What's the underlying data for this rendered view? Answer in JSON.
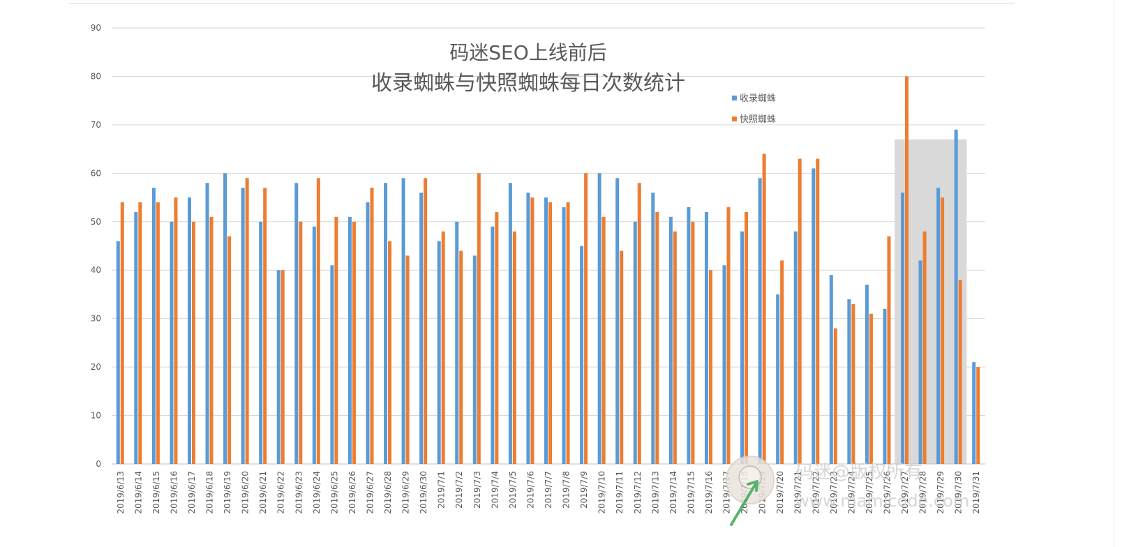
{
  "chart_data": {
    "type": "bar",
    "title_lines": [
      "码迷SEO上线前后",
      "收录蜘蛛与快照蜘蛛每日次数统计"
    ],
    "xlabel": "",
    "ylabel": "",
    "ylim": [
      0,
      90
    ],
    "yticks": [
      0,
      10,
      20,
      30,
      40,
      50,
      60,
      70,
      80,
      90
    ],
    "grid": true,
    "legend_position": "top-right",
    "categories": [
      "2019/6/13",
      "2019/6/14",
      "2019/6/15",
      "2019/6/16",
      "2019/6/17",
      "2019/6/18",
      "2019/6/19",
      "2019/6/20",
      "2019/6/21",
      "2019/6/22",
      "2019/6/23",
      "2019/6/24",
      "2019/6/25",
      "2019/6/26",
      "2019/6/27",
      "2019/6/28",
      "2019/6/29",
      "2019/6/30",
      "2019/7/1",
      "2019/7/2",
      "2019/7/3",
      "2019/7/4",
      "2019/7/5",
      "2019/7/6",
      "2019/7/7",
      "2019/7/8",
      "2019/7/9",
      "2019/7/10",
      "2019/7/11",
      "2019/7/12",
      "2019/7/13",
      "2019/7/14",
      "2019/7/15",
      "2019/7/16",
      "2019/7/17",
      "2019/7/18",
      "2019/7/19",
      "2019/7/20",
      "2019/7/21",
      "2019/7/22",
      "2019/7/23",
      "2019/7/24",
      "2019/7/25",
      "2019/7/26",
      "2019/7/27",
      "2019/7/28",
      "2019/7/29",
      "2019/7/30",
      "2019/7/31"
    ],
    "series": [
      {
        "name": "收录蜘蛛",
        "color": "#5b9bd5",
        "values": [
          46,
          52,
          57,
          50,
          55,
          58,
          60,
          57,
          50,
          40,
          58,
          49,
          41,
          51,
          54,
          58,
          59,
          56,
          46,
          50,
          43,
          49,
          58,
          56,
          55,
          53,
          45,
          60,
          59,
          50,
          56,
          51,
          53,
          52,
          41,
          48,
          59,
          35,
          48,
          61,
          39,
          34,
          37,
          32,
          56,
          42,
          57,
          69,
          21
        ]
      },
      {
        "name": "快照蜘蛛",
        "color": "#ed7d31",
        "values": [
          54,
          54,
          54,
          55,
          50,
          51,
          47,
          59,
          57,
          40,
          50,
          59,
          51,
          50,
          57,
          46,
          43,
          59,
          48,
          44,
          60,
          52,
          48,
          55,
          54,
          54,
          60,
          51,
          44,
          58,
          52,
          48,
          50,
          40,
          53,
          52,
          64,
          42,
          63,
          63,
          28,
          33,
          31,
          47,
          80,
          48,
          55,
          38,
          20
        ]
      }
    ],
    "highlight_range": [
      "2019/7/27",
      "2019/7/30"
    ]
  },
  "watermark": {
    "line1": "码迷@版权所有",
    "line2": "www.mamicode.com"
  }
}
